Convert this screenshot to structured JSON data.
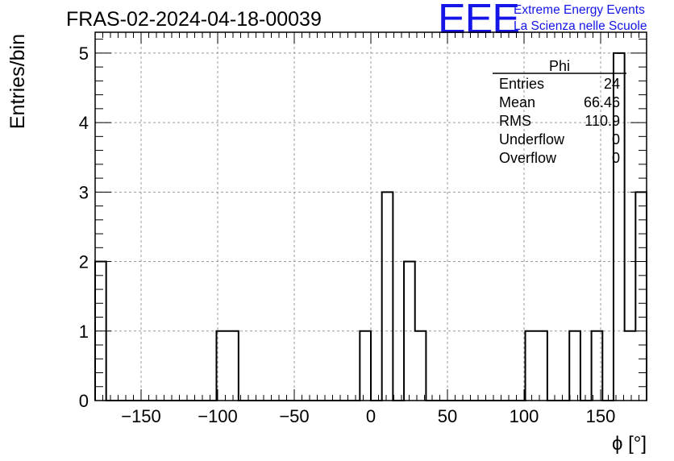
{
  "title": "FRAS-02-2024-04-18-00039",
  "logo": {
    "mark": "EEE",
    "line1": "Extreme Energy Events",
    "line2": "La Scienza nelle Scuole",
    "color": "#1515e8"
  },
  "stats": {
    "name": "Phi",
    "rows": [
      {
        "label": "Entries",
        "value": "24"
      },
      {
        "label": "Mean",
        "value": "66.46"
      },
      {
        "label": "RMS",
        "value": "110.9"
      },
      {
        "label": "Underflow",
        "value": "0"
      },
      {
        "label": "Overflow",
        "value": "0"
      }
    ]
  },
  "chart_data": {
    "type": "bar",
    "xlabel": "ϕ [°]",
    "ylabel": "Entries/bin",
    "xlim": [
      -180,
      180
    ],
    "ylim": [
      0,
      5.3
    ],
    "bin_width": 7.2,
    "bins": [
      {
        "x": -176.4,
        "value": 2
      },
      {
        "x": -97.2,
        "value": 1
      },
      {
        "x": -90.0,
        "value": 1
      },
      {
        "x": -3.6,
        "value": 1
      },
      {
        "x": 10.8,
        "value": 3
      },
      {
        "x": 25.2,
        "value": 2
      },
      {
        "x": 32.4,
        "value": 1
      },
      {
        "x": 104.4,
        "value": 1
      },
      {
        "x": 111.6,
        "value": 1
      },
      {
        "x": 133.2,
        "value": 1
      },
      {
        "x": 147.6,
        "value": 1
      },
      {
        "x": 162.0,
        "value": 5
      },
      {
        "x": 169.2,
        "value": 1
      },
      {
        "x": 176.4,
        "value": 3
      }
    ],
    "xticks": [
      -150,
      -100,
      -50,
      0,
      50,
      100,
      150
    ],
    "xtick_labels": [
      "−150",
      "−100",
      "−50",
      "0",
      "50",
      "100",
      "150"
    ],
    "yticks": [
      0,
      1,
      2,
      3,
      4,
      5
    ],
    "ytick_labels": [
      "0",
      "1",
      "2",
      "3",
      "4",
      "5"
    ],
    "grid": true,
    "line_color": "#000000",
    "grid_color": "#9a9a9a"
  }
}
